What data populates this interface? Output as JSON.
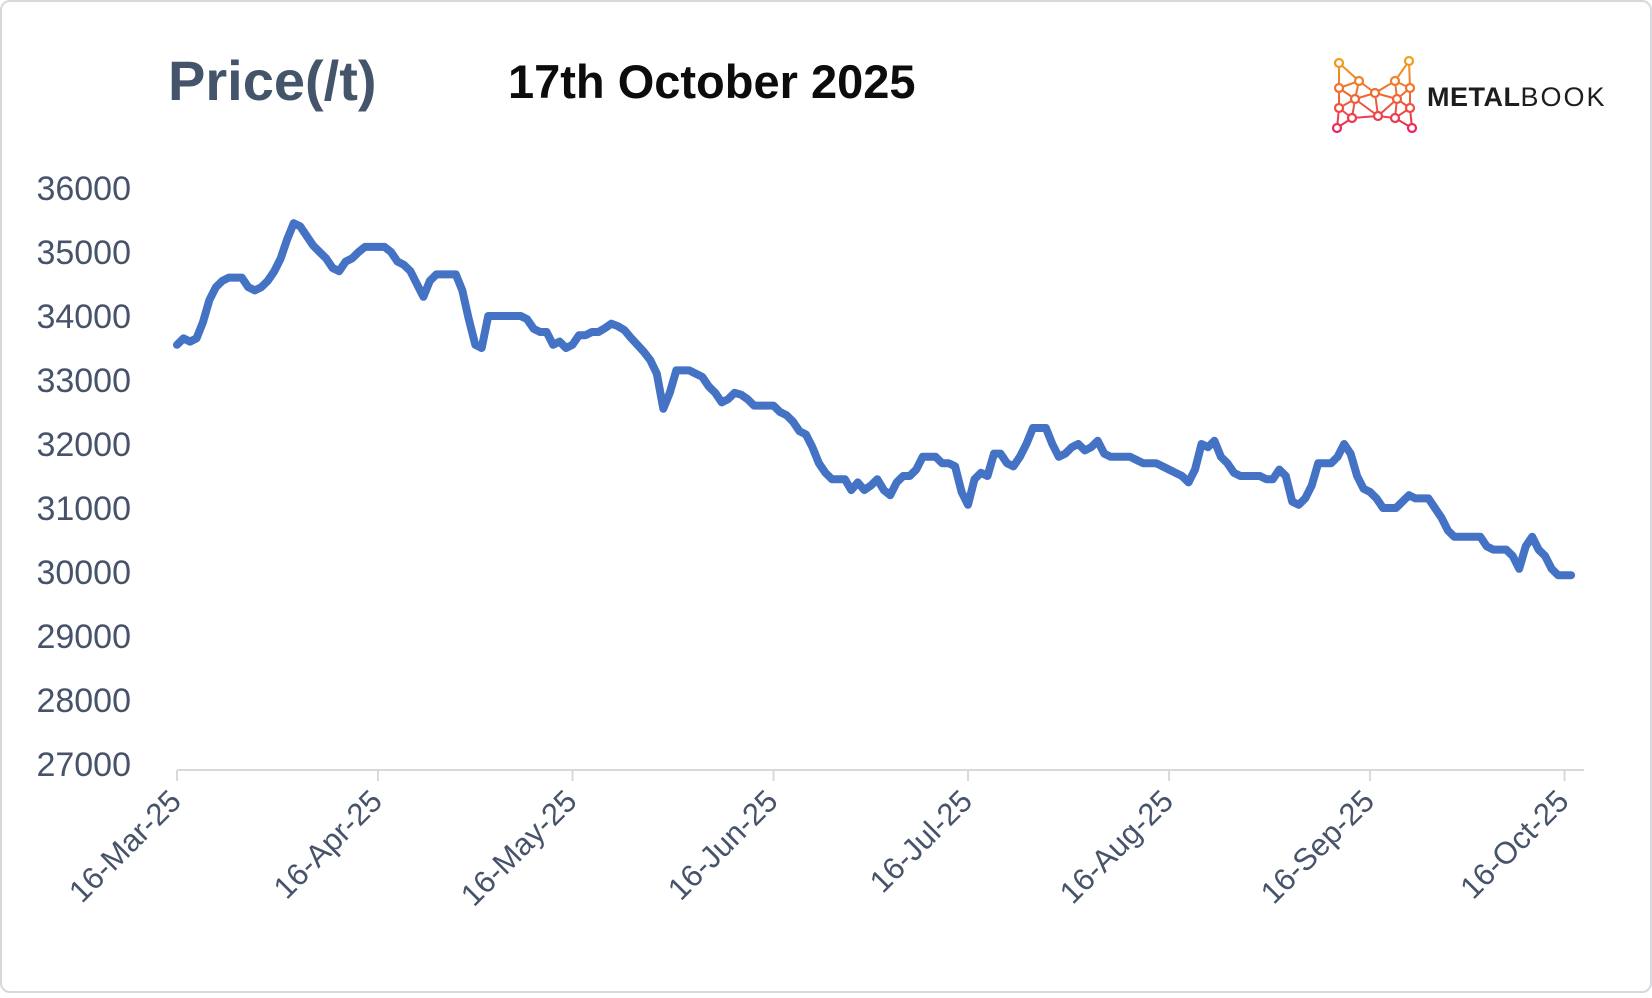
{
  "header": {
    "y_axis_title": "Price(/t)",
    "main_title": "17th October 2025"
  },
  "logo": {
    "name": "metalbook-logo",
    "brand_bold": "METAL",
    "brand_light": "BOOK",
    "gradient_top": "#F2A51C",
    "gradient_mid": "#EF6A30",
    "gradient_bottom": "#E91E63"
  },
  "chart_data": {
    "type": "line",
    "title": "17th October 2025",
    "y_axis_title": "Price(/t)",
    "xlabel": "",
    "ylabel": "Price(/t)",
    "ylim": [
      27000,
      36000
    ],
    "y_tick_step": 1000,
    "y_tick_labels": [
      "36000",
      "35000",
      "34000",
      "33000",
      "32000",
      "31000",
      "30000",
      "29000",
      "28000",
      "27000"
    ],
    "x_tick_labels": [
      "16-Mar-25",
      "16-Apr-25",
      "16-May-25",
      "16-Jun-25",
      "16-Jul-25",
      "16-Aug-25",
      "16-Sep-25",
      "16-Oct-25"
    ],
    "x_tick_days": [
      0,
      31,
      61,
      92,
      122,
      153,
      184,
      214
    ],
    "grid": false,
    "legend": false,
    "line_color": "#4472C4",
    "axis_color": "#d9d9d9",
    "label_color": "#47536b",
    "series": [
      {
        "name": "Price",
        "start_date": "16-Mar-25",
        "end_date": "17-Oct-25",
        "frequency": "daily",
        "values_daily": [
          33550,
          33650,
          33600,
          33650,
          33900,
          34250,
          34450,
          34550,
          34600,
          34600,
          34600,
          34450,
          34400,
          34450,
          34550,
          34700,
          34900,
          35200,
          35450,
          35400,
          35250,
          35100,
          35000,
          34900,
          34750,
          34700,
          34850,
          34900,
          35000,
          35080,
          35080,
          35080,
          35080,
          35000,
          34850,
          34800,
          34700,
          34500,
          34300,
          34550,
          34650,
          34650,
          34650,
          34650,
          34400,
          33950,
          33550,
          33500,
          34000,
          34000,
          34000,
          34000,
          34000,
          34000,
          33950,
          33800,
          33750,
          33750,
          33550,
          33600,
          33500,
          33550,
          33700,
          33700,
          33750,
          33750,
          33810,
          33880,
          33840,
          33780,
          33660,
          33550,
          33440,
          33310,
          33100,
          32550,
          32800,
          33150,
          33150,
          33150,
          33100,
          33050,
          32900,
          32800,
          32650,
          32700,
          32800,
          32770,
          32700,
          32600,
          32600,
          32600,
          32600,
          32500,
          32450,
          32350,
          32200,
          32150,
          31950,
          31700,
          31550,
          31450,
          31450,
          31450,
          31280,
          31400,
          31280,
          31350,
          31450,
          31280,
          31200,
          31400,
          31500,
          31500,
          31600,
          31800,
          31800,
          31800,
          31700,
          31700,
          31650,
          31250,
          31050,
          31450,
          31550,
          31500,
          31850,
          31850,
          31700,
          31650,
          31800,
          32000,
          32250,
          32250,
          32250,
          32000,
          31800,
          31850,
          31950,
          32000,
          31900,
          31950,
          32050,
          31850,
          31800,
          31800,
          31800,
          31800,
          31750,
          31700,
          31700,
          31700,
          31650,
          31600,
          31550,
          31500,
          31400,
          31600,
          32000,
          31950,
          32050,
          31800,
          31700,
          31550,
          31500,
          31500,
          31500,
          31500,
          31450,
          31450,
          31600,
          31500,
          31100,
          31050,
          31150,
          31350,
          31700,
          31700,
          31700,
          31800,
          32000,
          31850,
          31500,
          31300,
          31250,
          31150,
          31000,
          31000,
          31000,
          31100,
          31200,
          31150,
          31150,
          31150,
          31000,
          30850,
          30650,
          30550,
          30550,
          30550,
          30550,
          30550,
          30400,
          30350,
          30350,
          30350,
          30250,
          30050,
          30400,
          30550,
          30350,
          30250,
          30050,
          29950,
          29950,
          29950
        ]
      }
    ]
  }
}
